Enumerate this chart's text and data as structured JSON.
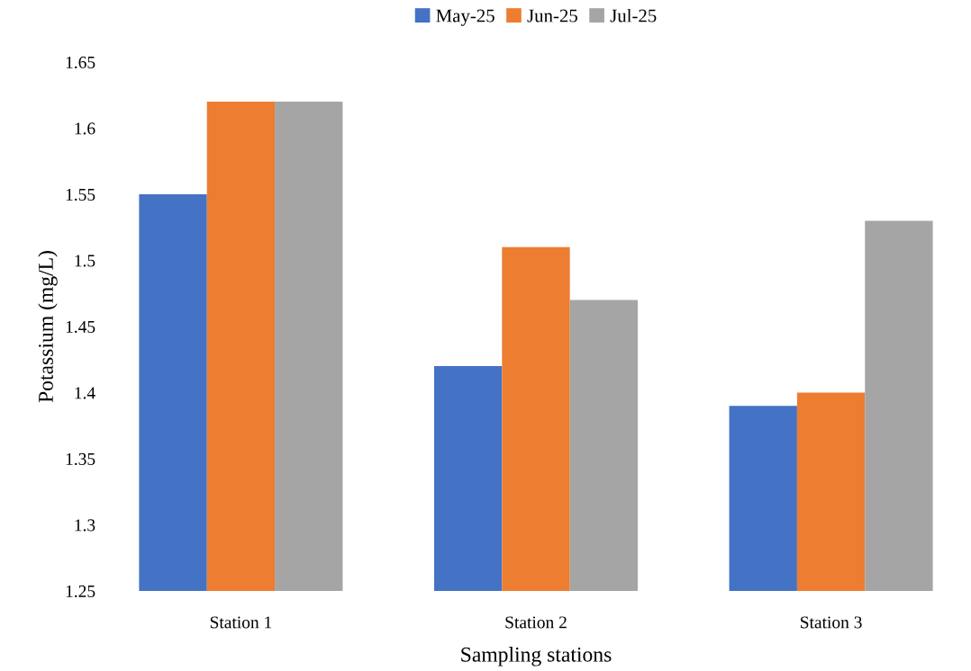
{
  "chart_data": {
    "type": "bar",
    "categories": [
      "Station 1",
      "Station 2",
      "Station 3"
    ],
    "series": [
      {
        "name": "May-25",
        "color": "#4472c4",
        "values": [
          1.55,
          1.42,
          1.39
        ]
      },
      {
        "name": "Jun-25",
        "color": "#ed7d31",
        "values": [
          1.62,
          1.51,
          1.4
        ]
      },
      {
        "name": "Jul-25",
        "color": "#a5a5a5",
        "values": [
          1.62,
          1.47,
          1.53
        ]
      }
    ],
    "xlabel": "Sampling stations",
    "ylabel": "Potassium (mg/L)",
    "ylim": [
      1.25,
      1.65
    ],
    "yticks": [
      1.25,
      1.3,
      1.35,
      1.4,
      1.45,
      1.5,
      1.55,
      1.6,
      1.65
    ],
    "grid": false,
    "legend": "top"
  }
}
